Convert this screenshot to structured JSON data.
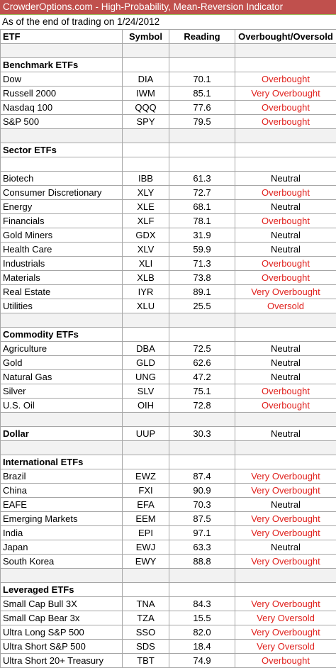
{
  "title": "CrowderOptions.com - High-Probability, Mean-Reversion Indicator",
  "subtitle": "As of the end of trading on 1/24/2012",
  "headers": [
    "ETF",
    "Symbol",
    "Reading",
    "Overbought/Oversold"
  ],
  "colors": {
    "title_bg": "#c0504d",
    "red_text": "#e0201c",
    "blank_row": "#f2f2f2"
  },
  "rows": [
    {
      "type": "blank"
    },
    {
      "type": "group",
      "label": "Benchmark ETFs"
    },
    {
      "type": "data",
      "etf": "Dow",
      "symbol": "DIA",
      "reading": "70.1",
      "status": "Overbought",
      "red": true
    },
    {
      "type": "data",
      "etf": "Russell 2000",
      "symbol": "IWM",
      "reading": "85.1",
      "status": "Very Overbought",
      "red": true
    },
    {
      "type": "data",
      "etf": "Nasdaq 100",
      "symbol": "QQQ",
      "reading": "77.6",
      "status": "Overbought",
      "red": true
    },
    {
      "type": "data",
      "etf": "S&P 500",
      "symbol": "SPY",
      "reading": "79.5",
      "status": "Overbought",
      "red": true
    },
    {
      "type": "blank"
    },
    {
      "type": "group",
      "label": "Sector ETFs"
    },
    {
      "type": "white-blank"
    },
    {
      "type": "data",
      "etf": "Biotech",
      "symbol": "IBB",
      "reading": "61.3",
      "status": "Neutral",
      "red": false
    },
    {
      "type": "data",
      "etf": "Consumer Discretionary",
      "symbol": "XLY",
      "reading": "72.7",
      "status": "Overbought",
      "red": true
    },
    {
      "type": "data",
      "etf": "Energy",
      "symbol": "XLE",
      "reading": "68.1",
      "status": "Neutral",
      "red": false
    },
    {
      "type": "data",
      "etf": "Financials",
      "symbol": "XLF",
      "reading": "78.1",
      "status": "Overbought",
      "red": true
    },
    {
      "type": "data",
      "etf": "Gold Miners",
      "symbol": "GDX",
      "reading": "31.9",
      "status": "Neutral",
      "red": false
    },
    {
      "type": "data",
      "etf": "Health Care",
      "symbol": "XLV",
      "reading": "59.9",
      "status": "Neutral",
      "red": false
    },
    {
      "type": "data",
      "etf": "Industrials",
      "symbol": "XLI",
      "reading": "71.3",
      "status": "Overbought",
      "red": true
    },
    {
      "type": "data",
      "etf": "Materials",
      "symbol": "XLB",
      "reading": "73.8",
      "status": "Overbought",
      "red": true
    },
    {
      "type": "data",
      "etf": "Real Estate",
      "symbol": "IYR",
      "reading": "89.1",
      "status": "Very Overbought",
      "red": true
    },
    {
      "type": "data",
      "etf": "Utilities",
      "symbol": "XLU",
      "reading": "25.5",
      "status": "Oversold",
      "red": true
    },
    {
      "type": "blank"
    },
    {
      "type": "group",
      "label": "Commodity ETFs"
    },
    {
      "type": "data",
      "etf": "Agriculture",
      "symbol": "DBA",
      "reading": "72.5",
      "status": "Neutral",
      "red": false
    },
    {
      "type": "data",
      "etf": "Gold",
      "symbol": "GLD",
      "reading": "62.6",
      "status": "Neutral",
      "red": false
    },
    {
      "type": "data",
      "etf": "Natural Gas",
      "symbol": "UNG",
      "reading": "47.2",
      "status": "Neutral",
      "red": false
    },
    {
      "type": "data",
      "etf": "Silver",
      "symbol": "SLV",
      "reading": "75.1",
      "status": "Overbought",
      "red": true
    },
    {
      "type": "data",
      "etf": "U.S. Oil",
      "symbol": "OIH",
      "reading": "72.8",
      "status": "Overbought",
      "red": true
    },
    {
      "type": "blank"
    },
    {
      "type": "data",
      "etf": "Dollar",
      "symbol": "UUP",
      "reading": "30.3",
      "status": "Neutral",
      "red": false,
      "bold": true
    },
    {
      "type": "blank"
    },
    {
      "type": "group",
      "label": "International ETFs"
    },
    {
      "type": "data",
      "etf": "Brazil",
      "symbol": "EWZ",
      "reading": "87.4",
      "status": "Very Overbought",
      "red": true
    },
    {
      "type": "data",
      "etf": "China",
      "symbol": "FXI",
      "reading": "90.9",
      "status": "Very Overbought",
      "red": true
    },
    {
      "type": "data",
      "etf": "EAFE",
      "symbol": "EFA",
      "reading": "70.3",
      "status": "Neutral",
      "red": false
    },
    {
      "type": "data",
      "etf": "Emerging Markets",
      "symbol": "EEM",
      "reading": "87.5",
      "status": "Very Overbought",
      "red": true
    },
    {
      "type": "data",
      "etf": "India",
      "symbol": "EPI",
      "reading": "97.1",
      "status": "Very Overbought",
      "red": true
    },
    {
      "type": "data",
      "etf": "Japan",
      "symbol": "EWJ",
      "reading": "63.3",
      "status": "Neutral",
      "red": false
    },
    {
      "type": "data",
      "etf": "South Korea",
      "symbol": "EWY",
      "reading": "88.8",
      "status": "Very Overbought",
      "red": true
    },
    {
      "type": "blank"
    },
    {
      "type": "group",
      "label": "Leveraged ETFs"
    },
    {
      "type": "data",
      "etf": "Small Cap Bull 3X",
      "symbol": "TNA",
      "reading": "84.3",
      "status": "Very Overbought",
      "red": true
    },
    {
      "type": "data",
      "etf": "Small Cap Bear 3x",
      "symbol": "TZA",
      "reading": "15.5",
      "status": "Very Oversold",
      "red": true
    },
    {
      "type": "data",
      "etf": "Ultra Long S&P 500",
      "symbol": "SSO",
      "reading": "82.0",
      "status": "Very Overbought",
      "red": true
    },
    {
      "type": "data",
      "etf": "Ultra Short S&P 500",
      "symbol": "SDS",
      "reading": "18.4",
      "status": "Very Oversold",
      "red": true
    },
    {
      "type": "data",
      "etf": "Ultra Short 20+ Treasury",
      "symbol": "TBT",
      "reading": "74.9",
      "status": "Overbought",
      "red": true
    }
  ]
}
